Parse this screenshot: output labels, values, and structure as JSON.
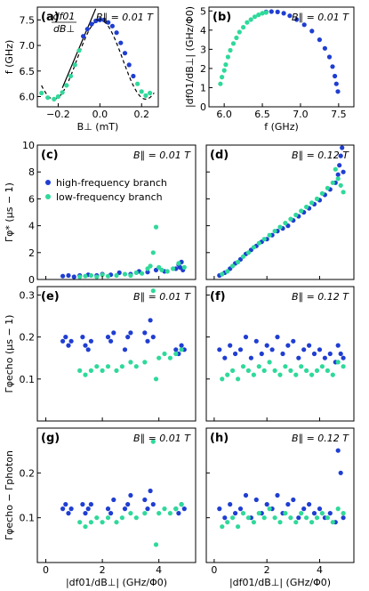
{
  "colors": {
    "high": "#1f3ed1",
    "low": "#2fd99a",
    "fit": "#000000"
  },
  "legend": {
    "high": "high-frequency branch",
    "low": "low-frequency branch"
  },
  "chart_data": [
    {
      "id": "a",
      "type": "scatter",
      "label": "(a)",
      "field": "B∥ = 0.01 T",
      "xlabel": "B⊥ (mT)",
      "ylabel": "f (GHz)",
      "xlim": [
        -0.3,
        0.28
      ],
      "ylim": [
        5.8,
        7.75
      ],
      "xticks": [
        -0.2,
        0.0,
        0.2
      ],
      "xticklabels": [
        "−0.2",
        "0.0",
        "0.2"
      ],
      "yticks": [
        6.0,
        6.5,
        7.0,
        7.5
      ],
      "yticklabels": [
        "6.0",
        "6.5",
        "7.0",
        "7.5"
      ],
      "annotation": {
        "num": "df01",
        "den": "dB⊥"
      },
      "fit": {
        "center": 0.0,
        "fmax": 7.5,
        "fmin": 5.95,
        "halfperiod": 0.22
      },
      "series": [
        {
          "name": "high-frequency branch",
          "color_key": "high",
          "x": [
            -0.08,
            -0.06,
            -0.04,
            -0.02,
            0.0,
            0.02,
            0.04,
            0.06,
            0.08,
            0.1,
            0.12,
            0.14,
            0.16
          ],
          "y": [
            7.18,
            7.32,
            7.42,
            7.48,
            7.5,
            7.5,
            7.45,
            7.38,
            7.25,
            7.05,
            6.85,
            6.62,
            6.4
          ]
        },
        {
          "name": "low-frequency branch",
          "color_key": "low",
          "x": [
            -0.28,
            -0.25,
            -0.22,
            -0.2,
            -0.18,
            -0.16,
            -0.14,
            -0.12,
            -0.1,
            0.18,
            0.2,
            0.22,
            0.24
          ],
          "y": [
            6.07,
            5.98,
            5.95,
            6.0,
            6.08,
            6.22,
            6.4,
            6.62,
            6.9,
            6.25,
            6.1,
            6.02,
            6.07
          ]
        }
      ]
    },
    {
      "id": "b",
      "type": "scatter",
      "label": "(b)",
      "field": "B∥ = 0.01 T",
      "xlabel": "f (GHz)",
      "ylabel": "|df01/dB⊥| (GHz/Φ0)",
      "xlim": [
        5.8,
        7.7
      ],
      "ylim": [
        0,
        5.2
      ],
      "xticks": [
        6.0,
        6.5,
        7.0,
        7.5
      ],
      "xticklabels": [
        "6.0",
        "6.5",
        "7.0",
        "7.5"
      ],
      "yticks": [
        0,
        1,
        2,
        3,
        4,
        5
      ],
      "yticklabels": [
        "0",
        "1",
        "2",
        "3",
        "4",
        "5"
      ],
      "series": [
        {
          "name": "high-frequency branch",
          "color_key": "high",
          "x": [
            6.55,
            6.62,
            6.7,
            6.78,
            6.86,
            6.95,
            7.05,
            7.15,
            7.25,
            7.32,
            7.38,
            7.42,
            7.45,
            7.47,
            7.49
          ],
          "y": [
            4.95,
            4.97,
            4.95,
            4.88,
            4.75,
            4.55,
            4.28,
            3.95,
            3.5,
            3.05,
            2.6,
            2.1,
            1.6,
            1.2,
            0.8
          ]
        },
        {
          "name": "low-frequency branch",
          "color_key": "low",
          "x": [
            5.95,
            5.97,
            6.0,
            6.02,
            6.05,
            6.08,
            6.12,
            6.16,
            6.2,
            6.25,
            6.3,
            6.35,
            6.4,
            6.45,
            6.5,
            6.55
          ],
          "y": [
            1.2,
            1.55,
            1.9,
            2.2,
            2.6,
            2.95,
            3.3,
            3.6,
            3.9,
            4.15,
            4.4,
            4.55,
            4.7,
            4.8,
            4.88,
            4.92
          ]
        }
      ]
    },
    {
      "id": "c",
      "type": "scatter",
      "label": "(c)",
      "field": "B∥ = 0.01 T",
      "xlabel": "",
      "ylabel": "Γφ* (μs − 1)",
      "xlim": [
        -0.3,
        5.3
      ],
      "ylim": [
        0,
        10
      ],
      "xticks": [
        0,
        2,
        4
      ],
      "xticklabels": [
        "",
        "",
        ""
      ],
      "yticks": [
        0,
        2,
        4,
        6,
        8,
        10
      ],
      "yticklabels": [
        "0",
        "2",
        "4",
        "6",
        "8",
        "10"
      ],
      "legend": true,
      "series": [
        {
          "name": "high-frequency branch",
          "color_key": "high",
          "x": [
            0.6,
            0.8,
            1.0,
            1.2,
            1.5,
            1.8,
            2.0,
            2.3,
            2.6,
            3.0,
            3.3,
            3.6,
            3.9,
            4.2,
            4.6,
            4.7,
            4.75,
            4.8,
            4.85
          ],
          "y": [
            0.25,
            0.3,
            0.2,
            0.3,
            0.35,
            0.3,
            0.4,
            0.35,
            0.5,
            0.4,
            0.6,
            0.55,
            0.7,
            0.6,
            0.8,
            1.1,
            0.9,
            1.3,
            0.7
          ]
        },
        {
          "name": "low-frequency branch",
          "color_key": "low",
          "x": [
            1.2,
            1.4,
            1.6,
            1.8,
            2.0,
            2.2,
            2.5,
            2.8,
            3.0,
            3.2,
            3.4,
            3.6,
            3.7,
            3.8,
            3.9,
            4.0,
            4.1,
            4.3,
            4.5,
            4.7,
            4.9
          ],
          "y": [
            0.2,
            0.25,
            0.3,
            0.2,
            0.35,
            0.25,
            0.3,
            0.4,
            0.3,
            0.5,
            0.45,
            0.8,
            1.0,
            2.0,
            3.9,
            0.9,
            0.7,
            0.6,
            0.8,
            1.2,
            0.9
          ]
        }
      ]
    },
    {
      "id": "d",
      "type": "scatter",
      "label": "(d)",
      "field": "B∥ = 0.12 T",
      "xlabel": "",
      "ylabel": "",
      "xlim": [
        -0.3,
        5.3
      ],
      "ylim": [
        0,
        10
      ],
      "xticks": [
        0,
        2,
        4
      ],
      "xticklabels": [
        "",
        "",
        ""
      ],
      "yticks": [
        0,
        2,
        4,
        6,
        8,
        10
      ],
      "yticklabels": [
        "",
        "",
        "",
        "",
        "",
        ""
      ],
      "series": [
        {
          "name": "high-frequency branch",
          "color_key": "high",
          "x": [
            0.2,
            0.4,
            0.6,
            0.8,
            1.0,
            1.2,
            1.4,
            1.6,
            1.8,
            2.0,
            2.2,
            2.4,
            2.6,
            2.8,
            3.0,
            3.2,
            3.4,
            3.6,
            3.8,
            4.0,
            4.2,
            4.4,
            4.6,
            4.7,
            4.75,
            4.8,
            4.85,
            4.9
          ],
          "y": [
            0.3,
            0.5,
            0.8,
            1.2,
            1.5,
            1.9,
            2.2,
            2.5,
            2.8,
            3.0,
            3.3,
            3.6,
            3.8,
            4.0,
            4.4,
            4.7,
            5.0,
            5.3,
            5.6,
            5.9,
            6.3,
            6.7,
            7.2,
            7.8,
            8.5,
            9.2,
            9.8,
            8.0
          ]
        },
        {
          "name": "low-frequency branch",
          "color_key": "low",
          "x": [
            0.3,
            0.5,
            0.7,
            0.9,
            1.1,
            1.3,
            1.5,
            1.7,
            1.9,
            2.1,
            2.3,
            2.5,
            2.7,
            2.9,
            3.1,
            3.3,
            3.5,
            3.7,
            3.9,
            4.1,
            4.3,
            4.5,
            4.6,
            4.7,
            4.8,
            4.9
          ],
          "y": [
            0.4,
            0.6,
            1.0,
            1.3,
            1.7,
            2.0,
            2.4,
            2.7,
            3.0,
            3.3,
            3.6,
            3.9,
            4.2,
            4.5,
            4.8,
            5.1,
            5.4,
            5.7,
            6.0,
            6.4,
            6.8,
            7.2,
            8.2,
            7.5,
            7.0,
            6.5
          ]
        }
      ]
    },
    {
      "id": "e",
      "type": "scatter",
      "label": "(e)",
      "field": "B∥ = 0.01 T",
      "xlabel": "",
      "ylabel": "Γφecho (μs − 1)",
      "xlim": [
        -0.3,
        5.3
      ],
      "ylim": [
        0,
        0.32
      ],
      "xticks": [
        0,
        2,
        4
      ],
      "xticklabels": [
        "",
        "",
        ""
      ],
      "yticks": [
        0.1,
        0.2,
        0.3
      ],
      "yticklabels": [
        "0.1",
        "0.2",
        "0.3"
      ],
      "series": [
        {
          "name": "high-frequency branch",
          "color_key": "high",
          "x": [
            0.6,
            0.7,
            0.8,
            0.9,
            1.3,
            1.4,
            1.5,
            1.6,
            2.2,
            2.3,
            2.4,
            2.8,
            2.9,
            3.0,
            3.5,
            3.6,
            3.7,
            3.8,
            4.6,
            4.7,
            4.8,
            4.9
          ],
          "y": [
            0.19,
            0.2,
            0.18,
            0.19,
            0.2,
            0.18,
            0.17,
            0.19,
            0.2,
            0.19,
            0.21,
            0.17,
            0.2,
            0.21,
            0.21,
            0.19,
            0.24,
            0.2,
            0.17,
            0.16,
            0.18,
            0.17
          ]
        },
        {
          "name": "low-frequency branch",
          "color_key": "low",
          "x": [
            1.2,
            1.4,
            1.6,
            1.8,
            2.0,
            2.2,
            2.5,
            2.7,
            3.0,
            3.2,
            3.5,
            3.8,
            3.9,
            4.0,
            4.2,
            4.4,
            4.6,
            4.8
          ],
          "y": [
            0.12,
            0.11,
            0.12,
            0.13,
            0.12,
            0.13,
            0.12,
            0.13,
            0.14,
            0.13,
            0.14,
            0.31,
            0.1,
            0.15,
            0.16,
            0.15,
            0.16,
            0.17
          ]
        }
      ]
    },
    {
      "id": "f",
      "type": "scatter",
      "label": "(f)",
      "field": "B∥ = 0.12 T",
      "xlabel": "",
      "ylabel": "",
      "xlim": [
        -0.3,
        5.3
      ],
      "ylim": [
        0,
        0.32
      ],
      "xticks": [
        0,
        2,
        4
      ],
      "xticklabels": [
        "",
        "",
        ""
      ],
      "yticks": [
        0.1,
        0.2,
        0.3
      ],
      "yticklabels": [
        "",
        "",
        ""
      ],
      "series": [
        {
          "name": "high-frequency branch",
          "color_key": "high",
          "x": [
            0.2,
            0.4,
            0.6,
            0.8,
            1.0,
            1.2,
            1.4,
            1.6,
            1.8,
            2.0,
            2.2,
            2.4,
            2.6,
            2.8,
            3.0,
            3.2,
            3.4,
            3.6,
            3.8,
            4.0,
            4.2,
            4.4,
            4.6,
            4.7,
            4.8,
            4.9
          ],
          "y": [
            0.17,
            0.15,
            0.18,
            0.16,
            0.17,
            0.2,
            0.15,
            0.19,
            0.16,
            0.18,
            0.17,
            0.2,
            0.16,
            0.18,
            0.19,
            0.15,
            0.17,
            0.18,
            0.16,
            0.17,
            0.15,
            0.16,
            0.14,
            0.18,
            0.16,
            0.15
          ]
        },
        {
          "name": "low-frequency branch",
          "color_key": "low",
          "x": [
            0.3,
            0.5,
            0.7,
            0.9,
            1.1,
            1.3,
            1.5,
            1.7,
            1.9,
            2.1,
            2.3,
            2.5,
            2.7,
            2.9,
            3.1,
            3.3,
            3.5,
            3.7,
            3.9,
            4.1,
            4.3,
            4.5,
            4.7,
            4.9
          ],
          "y": [
            0.1,
            0.11,
            0.12,
            0.1,
            0.13,
            0.12,
            0.11,
            0.13,
            0.12,
            0.14,
            0.12,
            0.11,
            0.13,
            0.12,
            0.11,
            0.13,
            0.12,
            0.11,
            0.12,
            0.13,
            0.12,
            0.11,
            0.14,
            0.13
          ]
        }
      ]
    },
    {
      "id": "g",
      "type": "scatter",
      "label": "(g)",
      "field": "B∥ = 0.01 T",
      "xlabel": "|df01/dB⊥| (GHz/Φ0)",
      "ylabel": "Γφecho − Γphoton",
      "xlim": [
        -0.3,
        5.3
      ],
      "ylim": [
        0,
        0.3
      ],
      "xticks": [
        0,
        2,
        4
      ],
      "xticklabels": [
        "0",
        "2",
        "4"
      ],
      "yticks": [
        0.1,
        0.2
      ],
      "yticklabels": [
        "0.1",
        "0.2"
      ],
      "series": [
        {
          "name": "high-frequency branch",
          "color_key": "high",
          "x": [
            0.6,
            0.7,
            0.8,
            0.9,
            1.3,
            1.4,
            1.5,
            1.6,
            2.2,
            2.3,
            2.4,
            2.8,
            2.9,
            3.0,
            3.5,
            3.6,
            3.7,
            3.8,
            4.6,
            4.7,
            4.8,
            4.9
          ],
          "y": [
            0.12,
            0.13,
            0.11,
            0.12,
            0.13,
            0.11,
            0.12,
            0.13,
            0.12,
            0.11,
            0.14,
            0.12,
            0.13,
            0.15,
            0.14,
            0.12,
            0.16,
            0.13,
            0.12,
            0.11,
            0.13,
            0.12
          ]
        },
        {
          "name": "low-frequency branch",
          "color_key": "low",
          "x": [
            1.2,
            1.4,
            1.6,
            1.8,
            2.0,
            2.2,
            2.5,
            2.7,
            3.0,
            3.2,
            3.5,
            3.8,
            3.9,
            4.0,
            4.2,
            4.4,
            4.6,
            4.8
          ],
          "y": [
            0.09,
            0.08,
            0.09,
            0.1,
            0.09,
            0.1,
            0.09,
            0.1,
            0.11,
            0.1,
            0.11,
            0.27,
            0.04,
            0.11,
            0.12,
            0.11,
            0.12,
            0.13
          ]
        }
      ]
    },
    {
      "id": "h",
      "type": "scatter",
      "label": "(h)",
      "field": "B∥ = 0.12 T",
      "xlabel": "|df01/dB⊥| (GHz/Φ0)",
      "ylabel": "",
      "xlim": [
        -0.3,
        5.3
      ],
      "ylim": [
        0,
        0.3
      ],
      "xticks": [
        0,
        2,
        4
      ],
      "xticklabels": [
        "0",
        "2",
        "4"
      ],
      "yticks": [
        0.1,
        0.2
      ],
      "yticklabels": [
        "",
        ""
      ],
      "series": [
        {
          "name": "high-frequency branch",
          "color_key": "high",
          "x": [
            0.2,
            0.4,
            0.6,
            0.8,
            1.0,
            1.2,
            1.4,
            1.6,
            1.8,
            2.0,
            2.2,
            2.4,
            2.6,
            2.8,
            3.0,
            3.2,
            3.4,
            3.6,
            3.8,
            4.0,
            4.2,
            4.4,
            4.6,
            4.7,
            4.8,
            4.9
          ],
          "y": [
            0.12,
            0.1,
            0.13,
            0.11,
            0.12,
            0.15,
            0.1,
            0.14,
            0.11,
            0.13,
            0.12,
            0.15,
            0.11,
            0.13,
            0.14,
            0.1,
            0.12,
            0.13,
            0.11,
            0.12,
            0.1,
            0.11,
            0.09,
            0.25,
            0.2,
            0.1
          ]
        },
        {
          "name": "low-frequency branch",
          "color_key": "low",
          "x": [
            0.3,
            0.5,
            0.7,
            0.9,
            1.1,
            1.3,
            1.5,
            1.7,
            1.9,
            2.1,
            2.3,
            2.5,
            2.7,
            2.9,
            3.1,
            3.3,
            3.5,
            3.7,
            3.9,
            4.1,
            4.3,
            4.5,
            4.7,
            4.9
          ],
          "y": [
            0.08,
            0.09,
            0.1,
            0.08,
            0.11,
            0.1,
            0.09,
            0.11,
            0.1,
            0.12,
            0.1,
            0.09,
            0.11,
            0.1,
            0.09,
            0.11,
            0.1,
            0.09,
            0.1,
            0.11,
            0.1,
            0.09,
            0.12,
            0.11
          ]
        }
      ]
    }
  ]
}
